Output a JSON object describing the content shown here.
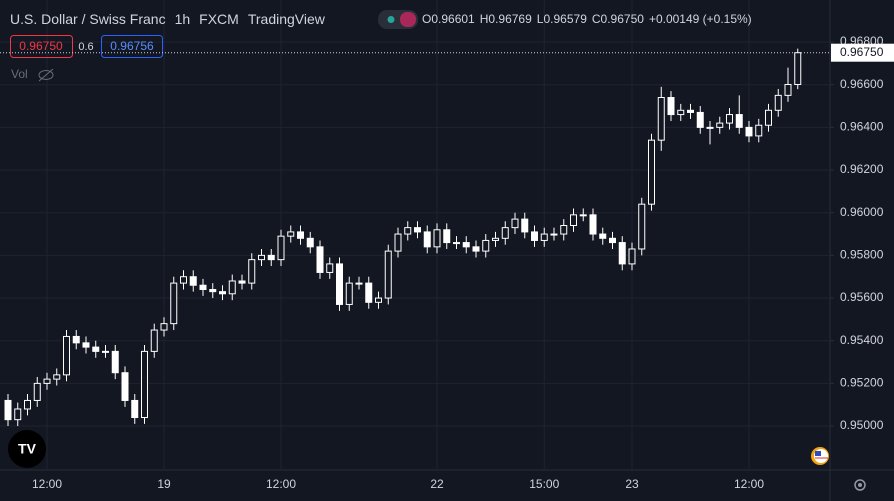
{
  "chart_data": {
    "type": "candlestick",
    "title": "U.S. Dollar / Swiss Franc",
    "interval": "1h",
    "source": "FXCM",
    "platform": "TradingView",
    "legend": {
      "o_label": "O",
      "o": "0.96601",
      "h_label": "H",
      "h": "0.96769",
      "l_label": "L",
      "l": "0.96579",
      "c_label": "C",
      "c": "0.96750",
      "change": "+0.00149 (+0.15%)"
    },
    "bid": "0.96750",
    "spread": "0.6",
    "ask": "0.96756",
    "volume_label": "Vol",
    "last_price_label": "0.96750",
    "categories": [
      null,
      null,
      null,
      null,
      "12:00",
      null,
      null,
      null,
      null,
      null,
      null,
      null,
      null,
      null,
      null,
      null,
      "19",
      null,
      null,
      null,
      null,
      null,
      null,
      null,
      null,
      null,
      null,
      null,
      "12:00",
      null,
      null,
      null,
      null,
      null,
      null,
      null,
      null,
      null,
      null,
      null,
      null,
      null,
      null,
      null,
      "22",
      null,
      null,
      null,
      null,
      null,
      null,
      null,
      null,
      null,
      null,
      "15:00",
      null,
      null,
      null,
      null,
      null,
      null,
      null,
      null,
      "23",
      null,
      null,
      null,
      null,
      null,
      null,
      null,
      null,
      null,
      null,
      null,
      "12:00",
      null,
      null,
      null,
      null,
      null
    ],
    "open": [
      0.9512,
      0.9503,
      0.9508,
      0.9512,
      0.952,
      0.9522,
      0.9524,
      0.9542,
      0.9539,
      0.9537,
      0.9535,
      0.9535,
      0.9525,
      0.9512,
      0.9504,
      0.9535,
      0.9545,
      0.9548,
      0.9567,
      0.957,
      0.9566,
      0.9564,
      0.9563,
      0.9562,
      0.9568,
      0.9567,
      0.9578,
      0.958,
      0.9578,
      0.9589,
      0.9591,
      0.9588,
      0.9584,
      0.9572,
      0.9576,
      0.9557,
      0.9567,
      0.9567,
      0.9558,
      0.956,
      0.9582,
      0.959,
      0.9593,
      0.9591,
      0.9584,
      0.9592,
      0.9586,
      0.9586,
      0.9584,
      0.9582,
      0.9587,
      0.9588,
      0.9593,
      0.9597,
      0.9591,
      0.9587,
      0.959,
      0.959,
      0.9594,
      0.9599,
      0.9599,
      0.959,
      0.9588,
      0.9586,
      0.9576,
      0.9583,
      0.9604,
      0.9634,
      0.9654,
      0.9646,
      0.9648,
      0.9647,
      0.964,
      0.964,
      0.9642,
      0.9646,
      0.964,
      0.9636,
      0.9641,
      0.9648,
      0.9655,
      0.96601
    ],
    "high": [
      0.9515,
      0.9511,
      0.9515,
      0.9523,
      0.9525,
      0.9527,
      0.9545,
      0.9545,
      0.9542,
      0.954,
      0.9538,
      0.9538,
      0.9528,
      0.9515,
      0.9538,
      0.9548,
      0.9551,
      0.957,
      0.9573,
      0.9573,
      0.9569,
      0.9567,
      0.9566,
      0.9571,
      0.9571,
      0.9581,
      0.9583,
      0.9583,
      0.9592,
      0.9594,
      0.9594,
      0.9591,
      0.9587,
      0.9579,
      0.9579,
      0.957,
      0.957,
      0.957,
      0.9563,
      0.9585,
      0.9593,
      0.9596,
      0.9596,
      0.9594,
      0.9595,
      0.9595,
      0.9589,
      0.9589,
      0.9587,
      0.959,
      0.9591,
      0.9596,
      0.96,
      0.96,
      0.9594,
      0.9593,
      0.9593,
      0.9597,
      0.9602,
      0.9602,
      0.9602,
      0.9593,
      0.9591,
      0.9589,
      0.9586,
      0.9607,
      0.9637,
      0.9659,
      0.9657,
      0.9651,
      0.9651,
      0.965,
      0.9643,
      0.9645,
      0.9649,
      0.9655,
      0.9643,
      0.9644,
      0.9651,
      0.9658,
      0.9668,
      0.96769
    ],
    "low": [
      0.95,
      0.95,
      0.9505,
      0.9509,
      0.9517,
      0.9519,
      0.9521,
      0.9536,
      0.9534,
      0.9532,
      0.9532,
      0.9522,
      0.9509,
      0.9501,
      0.9501,
      0.9532,
      0.9542,
      0.9545,
      0.9564,
      0.9563,
      0.9561,
      0.956,
      0.9559,
      0.9559,
      0.9564,
      0.9564,
      0.9575,
      0.9575,
      0.9575,
      0.9586,
      0.9585,
      0.9581,
      0.9569,
      0.9569,
      0.9554,
      0.9554,
      0.9564,
      0.9555,
      0.9555,
      0.9557,
      0.9579,
      0.9587,
      0.9588,
      0.9581,
      0.9581,
      0.9583,
      0.9583,
      0.9581,
      0.9579,
      0.9579,
      0.9584,
      0.9585,
      0.959,
      0.9588,
      0.9584,
      0.9584,
      0.9587,
      0.9587,
      0.9591,
      0.9596,
      0.9587,
      0.9585,
      0.9583,
      0.9573,
      0.9573,
      0.958,
      0.9601,
      0.9629,
      0.9643,
      0.9643,
      0.9644,
      0.9637,
      0.9632,
      0.9637,
      0.9639,
      0.9637,
      0.9633,
      0.9633,
      0.9638,
      0.9645,
      0.9652,
      0.96579
    ],
    "close": [
      0.9503,
      0.9508,
      0.9512,
      0.952,
      0.9522,
      0.9524,
      0.9542,
      0.9539,
      0.9537,
      0.9535,
      0.9535,
      0.9525,
      0.9512,
      0.9504,
      0.9535,
      0.9545,
      0.9548,
      0.9567,
      0.957,
      0.9566,
      0.9564,
      0.9563,
      0.9562,
      0.9568,
      0.9567,
      0.9578,
      0.958,
      0.9578,
      0.9589,
      0.9591,
      0.9588,
      0.9584,
      0.9572,
      0.9576,
      0.9557,
      0.9567,
      0.9567,
      0.9558,
      0.956,
      0.9582,
      0.959,
      0.9593,
      0.9591,
      0.9584,
      0.9592,
      0.9586,
      0.9586,
      0.9584,
      0.9582,
      0.9587,
      0.9588,
      0.9593,
      0.9597,
      0.9591,
      0.9587,
      0.959,
      0.959,
      0.9594,
      0.9599,
      0.9599,
      0.959,
      0.9588,
      0.9586,
      0.9576,
      0.9583,
      0.9604,
      0.9634,
      0.9654,
      0.9646,
      0.9648,
      0.9647,
      0.964,
      0.964,
      0.9642,
      0.9646,
      0.964,
      0.9636,
      0.9641,
      0.9648,
      0.9655,
      0.96601,
      0.9675
    ],
    "up_color": "#ffffff",
    "down_color": "#ffffff",
    "ylim": [
      0.94794,
      0.96997
    ],
    "yticks": [
      {
        "value": 0.968,
        "label": "0.96800"
      },
      {
        "value": 0.966,
        "label": "0.96600"
      },
      {
        "value": 0.964,
        "label": "0.96400"
      },
      {
        "value": 0.962,
        "label": "0.96200"
      },
      {
        "value": 0.96,
        "label": "0.96000"
      },
      {
        "value": 0.958,
        "label": "0.95800"
      },
      {
        "value": 0.956,
        "label": "0.95600"
      },
      {
        "value": 0.954,
        "label": "0.95400"
      },
      {
        "value": 0.952,
        "label": "0.95200"
      },
      {
        "value": 0.95,
        "label": "0.95000"
      }
    ],
    "grid": true
  }
}
